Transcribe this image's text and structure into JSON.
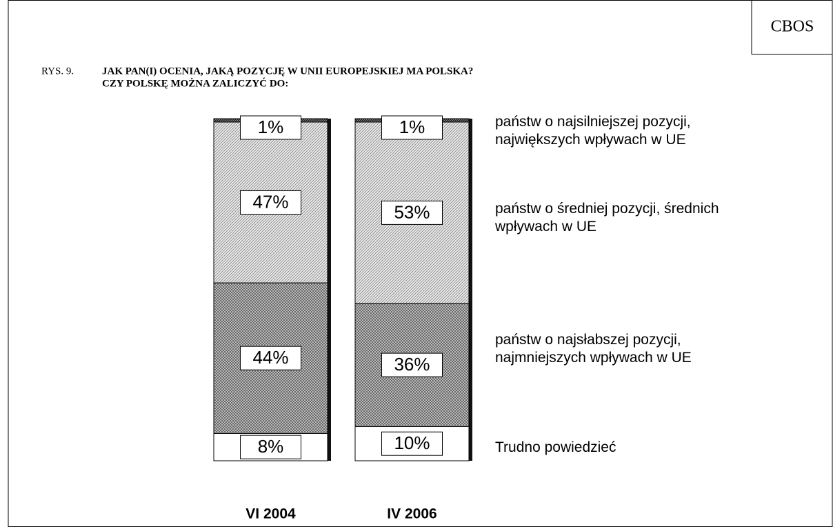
{
  "chart_data": {
    "type": "stacked_bar",
    "source": "CBOS",
    "figure_label": "RYS. 9.",
    "title": "JAK PAN(I) OCENIA, JAKĄ POZYCJĘ W UNII EUROPEJSKIEJ MA POLSKA?",
    "subtitle": "CZY POLSKĘ MOŻNA ZALICZYĆ DO:",
    "categories": [
      "VI 2004",
      "IV 2006"
    ],
    "ylim": [
      0,
      100
    ],
    "series": [
      {
        "name": "Trudno powiedzieć",
        "color": "#ffffff",
        "values": [
          8,
          10
        ],
        "value_labels": [
          "8%",
          "10%"
        ]
      },
      {
        "name": "państw o najsłabszej pozycji, najmniejszych wpływach w UE",
        "color": "#9a9a9a",
        "values": [
          44,
          36
        ],
        "value_labels": [
          "44%",
          "36%"
        ]
      },
      {
        "name": "państw o średniej pozycji, średnich wpływach w UE",
        "color": "#c8c8c8",
        "values": [
          47,
          53
        ],
        "value_labels": [
          "47%",
          "53%"
        ]
      },
      {
        "name": "państw o najsilniejszej pozycji, największych wpływach w UE",
        "color": "#303030",
        "values": [
          1,
          1
        ],
        "value_labels": [
          "1%",
          "1%"
        ]
      }
    ]
  }
}
